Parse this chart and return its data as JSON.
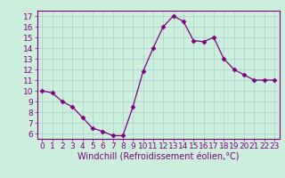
{
  "x": [
    0,
    1,
    2,
    3,
    4,
    5,
    6,
    7,
    8,
    9,
    10,
    11,
    12,
    13,
    14,
    15,
    16,
    17,
    18,
    19,
    20,
    21,
    22,
    23
  ],
  "y": [
    10,
    9.8,
    9.0,
    8.5,
    7.5,
    6.5,
    6.2,
    5.8,
    5.8,
    8.5,
    11.8,
    14.0,
    16.0,
    17.0,
    16.5,
    14.7,
    14.6,
    15.0,
    13.0,
    12.0,
    11.5,
    11.0,
    11.0,
    11.0
  ],
  "line_color": "#800080",
  "marker": "D",
  "marker_size": 2.5,
  "bg_color": "#cceedd",
  "grid_color": "#aacccc",
  "xlabel": "Windchill (Refroidissement éolien,°C)",
  "xlim": [
    -0.5,
    23.5
  ],
  "ylim": [
    5.5,
    17.5
  ],
  "yticks": [
    6,
    7,
    8,
    9,
    10,
    11,
    12,
    13,
    14,
    15,
    16,
    17
  ],
  "xticks": [
    0,
    1,
    2,
    3,
    4,
    5,
    6,
    7,
    8,
    9,
    10,
    11,
    12,
    13,
    14,
    15,
    16,
    17,
    18,
    19,
    20,
    21,
    22,
    23
  ],
  "tick_color": "#800080",
  "label_color": "#800080",
  "spine_color": "#800080",
  "font_size": 6.5,
  "xlabel_fontsize": 7
}
